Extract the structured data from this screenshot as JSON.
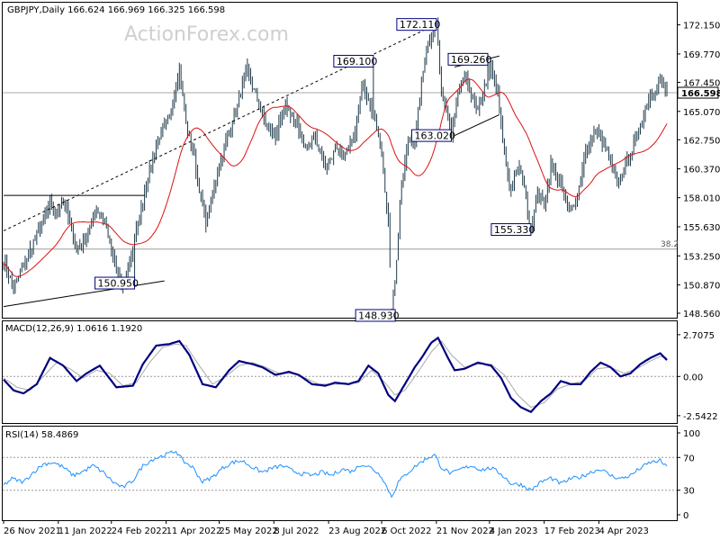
{
  "header": {
    "price_title": "GBPJPY,Daily  166.624 166.969 166.325 166.598",
    "macd_title": "MACD(12,26,9) 1.0616 1.1920",
    "rsi_title": "RSI(14) 58.4869",
    "watermark": "ActionForex.com"
  },
  "colors": {
    "candles": "#1f3a4a",
    "ma": "#dd1111",
    "macd_line": "#000080",
    "signal_line": "#aaaaaa",
    "rsi_line": "#1e90ff",
    "label_box": "#000080"
  },
  "chart_data": [
    {
      "type": "candlestick",
      "symbol": "GBPJPY",
      "timeframe": "Daily",
      "ylim": [
        148.56,
        173.3
      ],
      "price_ticks": [
        "172.150",
        "169.770",
        "167.450",
        "165.070",
        "162.750",
        "160.370",
        "158.010",
        "155.630",
        "153.250",
        "150.870",
        "148.560"
      ],
      "last_price": "166.598",
      "x_labels": [
        "26 Nov 2021",
        "11 Jan 2022",
        "24 Feb 2022",
        "11 Apr 2022",
        "25 May 2022",
        "8 Jul 2022",
        "23 Aug 2022",
        "6 Oct 2022",
        "21 Nov 2022",
        "4 Jan 2023",
        "17 Feb 2023",
        "4 Apr 2023"
      ],
      "anchors": [
        [
          0,
          152.8
        ],
        [
          6,
          150.6
        ],
        [
          12,
          152.5
        ],
        [
          20,
          155.0
        ],
        [
          28,
          157.4
        ],
        [
          32,
          156.8
        ],
        [
          36,
          157.9
        ],
        [
          44,
          153.8
        ],
        [
          50,
          154.8
        ],
        [
          56,
          157.2
        ],
        [
          62,
          155.6
        ],
        [
          66,
          153.0
        ],
        [
          72,
          150.6
        ],
        [
          76,
          152.8
        ],
        [
          82,
          156.5
        ],
        [
          88,
          160.4
        ],
        [
          94,
          163.0
        ],
        [
          100,
          164.5
        ],
        [
          104,
          167.3
        ],
        [
          106,
          168.4
        ],
        [
          110,
          164.0
        ],
        [
          114,
          162.0
        ],
        [
          118,
          158.8
        ],
        [
          122,
          156.0
        ],
        [
          128,
          159.5
        ],
        [
          136,
          163.5
        ],
        [
          142,
          166.0
        ],
        [
          146,
          168.6
        ],
        [
          152,
          166.4
        ],
        [
          158,
          164.0
        ],
        [
          164,
          163.0
        ],
        [
          170,
          165.5
        ],
        [
          176,
          164.2
        ],
        [
          182,
          162.0
        ],
        [
          188,
          163.0
        ],
        [
          194,
          160.5
        ],
        [
          200,
          161.8
        ],
        [
          206,
          161.5
        ],
        [
          212,
          163.5
        ],
        [
          216,
          167.3
        ],
        [
          220,
          166.1
        ],
        [
          224,
          164.2
        ],
        [
          228,
          161.5
        ],
        [
          232,
          156.0
        ],
        [
          234,
          148.93
        ],
        [
          236,
          151.0
        ],
        [
          240,
          159.5
        ],
        [
          244,
          162.5
        ],
        [
          248,
          162.7
        ],
        [
          250,
          165.5
        ],
        [
          254,
          169.5
        ],
        [
          258,
          171.0
        ],
        [
          261,
          172.11
        ],
        [
          264,
          167.0
        ],
        [
          268,
          164.5
        ],
        [
          270,
          163.02
        ],
        [
          274,
          166.5
        ],
        [
          278,
          168.0
        ],
        [
          282,
          166.5
        ],
        [
          286,
          165.0
        ],
        [
          290,
          167.0
        ],
        [
          294,
          168.6
        ],
        [
          298,
          166.5
        ],
        [
          302,
          161.5
        ],
        [
          306,
          158.5
        ],
        [
          310,
          160.5
        ],
        [
          314,
          159.0
        ],
        [
          318,
          155.33
        ],
        [
          322,
          158.5
        ],
        [
          326,
          157.3
        ],
        [
          330,
          160.7
        ],
        [
          336,
          159.0
        ],
        [
          340,
          157.0
        ],
        [
          346,
          158.0
        ],
        [
          350,
          161.3
        ],
        [
          356,
          163.5
        ],
        [
          360,
          163.0
        ],
        [
          366,
          161.0
        ],
        [
          370,
          159.0
        ],
        [
          374,
          160.2
        ],
        [
          380,
          162.3
        ],
        [
          384,
          164.0
        ],
        [
          388,
          165.8
        ],
        [
          392,
          166.7
        ],
        [
          396,
          167.5
        ],
        [
          400,
          166.6
        ]
      ],
      "annotations": [
        {
          "label": "172.110",
          "x": 261,
          "y": 172.11,
          "box": "left"
        },
        {
          "label": "169.100",
          "x": 223,
          "y": 169.1,
          "box": "left"
        },
        {
          "label": "169.260",
          "x": 292,
          "y": 169.26,
          "box": "left"
        },
        {
          "label": "163.020",
          "x": 270,
          "y": 163.02,
          "box": "left"
        },
        {
          "label": "155.330",
          "x": 318,
          "y": 155.33,
          "box": "left"
        },
        {
          "label": "150.950",
          "x": 79,
          "y": 150.95,
          "box": "left"
        },
        {
          "label": "148.930",
          "x": 234,
          "y": 148.93,
          "box": "below"
        }
      ],
      "levels": [
        {
          "label": "38.2",
          "y": 153.8
        },
        {
          "label": "",
          "y": 166.6
        }
      ],
      "trendlines": [
        {
          "style": "dashed",
          "points": [
            [
              0,
              155.3
            ],
            [
              261,
              172.2
            ]
          ]
        },
        {
          "style": "solid",
          "points": [
            [
              0,
              149.1
            ],
            [
              97,
              151.2
            ]
          ]
        },
        {
          "style": "solid",
          "points": [
            [
              0,
              158.2
            ],
            [
              85,
              158.2
            ]
          ]
        },
        {
          "style": "solid",
          "points": [
            [
              272,
              163.1
            ],
            [
              299,
              164.8
            ]
          ]
        },
        {
          "style": "solid",
          "points": [
            [
              272,
              168.7
            ],
            [
              299,
              169.6
            ]
          ]
        }
      ]
    },
    {
      "type": "line",
      "name": "MACD(12,26,9)",
      "values_shown": [
        1.0616,
        1.192
      ],
      "y_ticks": [
        "2.7075",
        "0.00",
        "-2.5422"
      ],
      "ylim": [
        -2.9,
        3.4
      ],
      "macd_anchors": [
        [
          0,
          -0.2
        ],
        [
          6,
          -0.9
        ],
        [
          12,
          -1.1
        ],
        [
          20,
          -0.5
        ],
        [
          28,
          1.2
        ],
        [
          36,
          0.7
        ],
        [
          44,
          -0.3
        ],
        [
          50,
          0.2
        ],
        [
          58,
          0.7
        ],
        [
          68,
          -0.7
        ],
        [
          78,
          -0.6
        ],
        [
          84,
          0.8
        ],
        [
          92,
          2.0
        ],
        [
          100,
          2.1
        ],
        [
          106,
          2.3
        ],
        [
          112,
          1.4
        ],
        [
          120,
          -0.5
        ],
        [
          128,
          -0.7
        ],
        [
          136,
          0.4
        ],
        [
          142,
          1.0
        ],
        [
          150,
          0.8
        ],
        [
          156,
          0.6
        ],
        [
          164,
          0.1
        ],
        [
          172,
          0.3
        ],
        [
          178,
          0.1
        ],
        [
          186,
          -0.5
        ],
        [
          194,
          -0.6
        ],
        [
          200,
          -0.4
        ],
        [
          208,
          -0.5
        ],
        [
          214,
          -0.3
        ],
        [
          220,
          0.7
        ],
        [
          226,
          0.2
        ],
        [
          232,
          -1.2
        ],
        [
          236,
          -1.6
        ],
        [
          242,
          -0.5
        ],
        [
          248,
          0.6
        ],
        [
          252,
          1.2
        ],
        [
          258,
          2.2
        ],
        [
          262,
          2.5
        ],
        [
          268,
          1.2
        ],
        [
          272,
          0.4
        ],
        [
          278,
          0.5
        ],
        [
          286,
          0.9
        ],
        [
          294,
          0.7
        ],
        [
          300,
          -0.1
        ],
        [
          306,
          -1.4
        ],
        [
          312,
          -2.0
        ],
        [
          318,
          -2.3
        ],
        [
          324,
          -1.6
        ],
        [
          330,
          -1.1
        ],
        [
          336,
          -0.3
        ],
        [
          342,
          -0.5
        ],
        [
          348,
          -0.5
        ],
        [
          354,
          0.3
        ],
        [
          360,
          0.9
        ],
        [
          366,
          0.6
        ],
        [
          372,
          0.0
        ],
        [
          378,
          0.2
        ],
        [
          384,
          0.8
        ],
        [
          390,
          1.2
        ],
        [
          396,
          1.5
        ],
        [
          400,
          1.06
        ]
      ],
      "signal_anchors": [
        [
          0,
          -0.1
        ],
        [
          8,
          -0.7
        ],
        [
          16,
          -0.9
        ],
        [
          24,
          0.0
        ],
        [
          32,
          0.9
        ],
        [
          40,
          0.5
        ],
        [
          48,
          -0.1
        ],
        [
          56,
          0.4
        ],
        [
          64,
          0.2
        ],
        [
          72,
          -0.6
        ],
        [
          80,
          -0.4
        ],
        [
          88,
          0.9
        ],
        [
          96,
          1.9
        ],
        [
          104,
          2.1
        ],
        [
          110,
          2.0
        ],
        [
          118,
          0.7
        ],
        [
          126,
          -0.5
        ],
        [
          134,
          0.0
        ],
        [
          142,
          0.7
        ],
        [
          150,
          0.9
        ],
        [
          158,
          0.6
        ],
        [
          166,
          0.2
        ],
        [
          174,
          0.2
        ],
        [
          182,
          -0.1
        ],
        [
          190,
          -0.5
        ],
        [
          198,
          -0.5
        ],
        [
          206,
          -0.5
        ],
        [
          214,
          -0.4
        ],
        [
          222,
          0.4
        ],
        [
          230,
          -0.4
        ],
        [
          236,
          -1.2
        ],
        [
          242,
          -0.9
        ],
        [
          250,
          0.3
        ],
        [
          258,
          1.6
        ],
        [
          264,
          2.3
        ],
        [
          270,
          1.4
        ],
        [
          278,
          0.6
        ],
        [
          286,
          0.8
        ],
        [
          294,
          0.8
        ],
        [
          302,
          0.1
        ],
        [
          310,
          -1.2
        ],
        [
          318,
          -2.0
        ],
        [
          326,
          -1.7
        ],
        [
          334,
          -0.8
        ],
        [
          342,
          -0.5
        ],
        [
          350,
          -0.3
        ],
        [
          358,
          0.5
        ],
        [
          366,
          0.6
        ],
        [
          374,
          0.2
        ],
        [
          382,
          0.5
        ],
        [
          390,
          1.0
        ],
        [
          396,
          1.3
        ],
        [
          400,
          1.19
        ]
      ]
    },
    {
      "type": "line",
      "name": "RSI(14)",
      "value_shown": 58.4869,
      "y_ticks": [
        "100",
        "70",
        "30",
        "0"
      ],
      "ylim": [
        0,
        100
      ],
      "anchors": [
        [
          0,
          36
        ],
        [
          5,
          44
        ],
        [
          12,
          40
        ],
        [
          18,
          52
        ],
        [
          24,
          62
        ],
        [
          30,
          64
        ],
        [
          36,
          58
        ],
        [
          42,
          48
        ],
        [
          48,
          53
        ],
        [
          54,
          60
        ],
        [
          60,
          52
        ],
        [
          66,
          40
        ],
        [
          72,
          33
        ],
        [
          78,
          42
        ],
        [
          84,
          60
        ],
        [
          90,
          68
        ],
        [
          96,
          72
        ],
        [
          104,
          78
        ],
        [
          108,
          66
        ],
        [
          114,
          58
        ],
        [
          120,
          40
        ],
        [
          126,
          46
        ],
        [
          132,
          57
        ],
        [
          138,
          64
        ],
        [
          144,
          66
        ],
        [
          150,
          58
        ],
        [
          156,
          52
        ],
        [
          162,
          57
        ],
        [
          168,
          60
        ],
        [
          174,
          54
        ],
        [
          180,
          50
        ],
        [
          186,
          48
        ],
        [
          192,
          52
        ],
        [
          198,
          48
        ],
        [
          204,
          56
        ],
        [
          210,
          53
        ],
        [
          216,
          62
        ],
        [
          222,
          57
        ],
        [
          228,
          47
        ],
        [
          232,
          30
        ],
        [
          234,
          22
        ],
        [
          238,
          40
        ],
        [
          244,
          52
        ],
        [
          250,
          62
        ],
        [
          256,
          70
        ],
        [
          260,
          73
        ],
        [
          264,
          58
        ],
        [
          270,
          50
        ],
        [
          276,
          56
        ],
        [
          282,
          60
        ],
        [
          288,
          55
        ],
        [
          294,
          57
        ],
        [
          300,
          50
        ],
        [
          306,
          38
        ],
        [
          312,
          37
        ],
        [
          318,
          30
        ],
        [
          324,
          40
        ],
        [
          330,
          45
        ],
        [
          336,
          38
        ],
        [
          342,
          44
        ],
        [
          348,
          46
        ],
        [
          354,
          52
        ],
        [
          360,
          56
        ],
        [
          366,
          48
        ],
        [
          372,
          44
        ],
        [
          378,
          48
        ],
        [
          384,
          57
        ],
        [
          390,
          64
        ],
        [
          396,
          66
        ],
        [
          400,
          58
        ]
      ]
    }
  ]
}
